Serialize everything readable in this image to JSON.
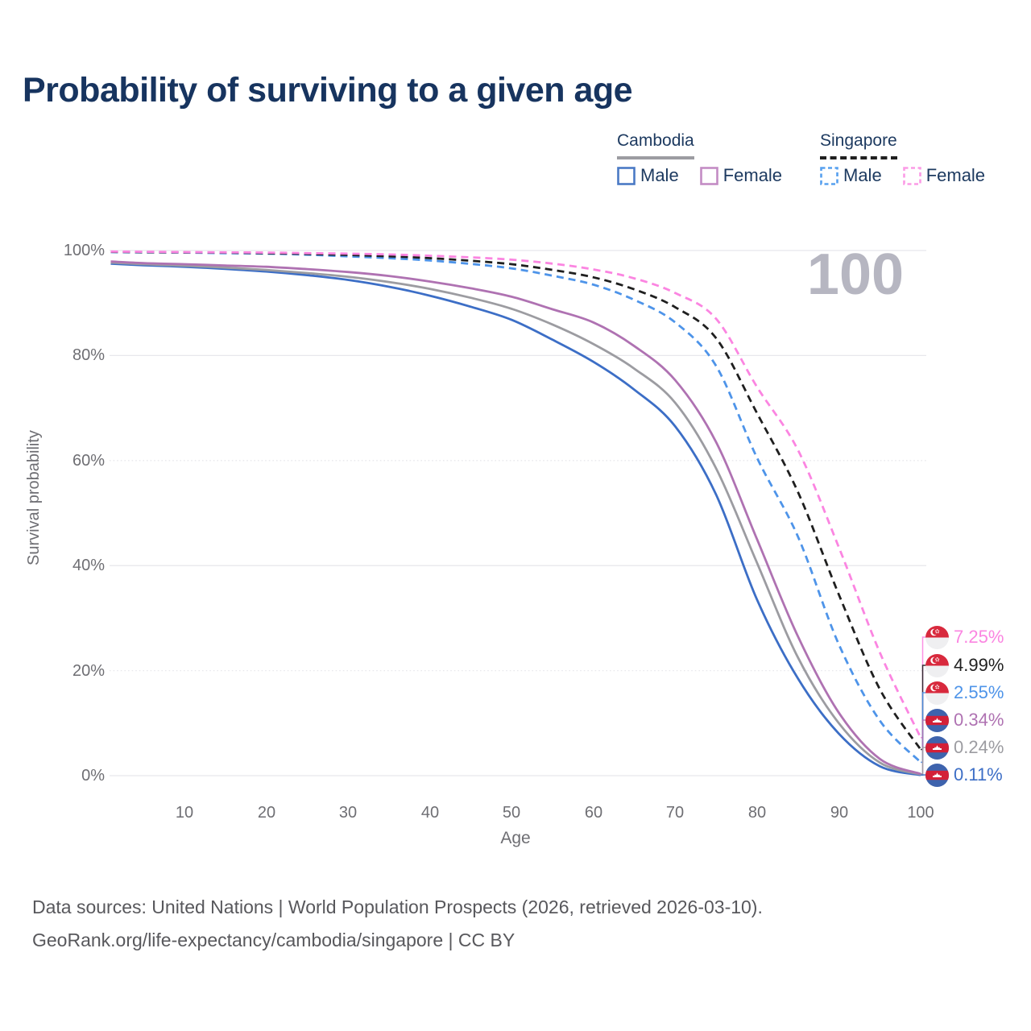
{
  "title": "Probability of surviving to a given age",
  "watermark_age": "100",
  "legend": {
    "groups": [
      {
        "country": "Cambodia",
        "line_style": "solid",
        "underline_color": "#9c9ca1",
        "items": [
          {
            "label": "Male",
            "color": "#4a79c5",
            "dashed": false
          },
          {
            "label": "Female",
            "color": "#c38cc4",
            "dashed": false
          }
        ]
      },
      {
        "country": "Singapore",
        "line_style": "dashed",
        "underline_color": "#1f1f1f",
        "items": [
          {
            "label": "Male",
            "color": "#57a0ef",
            "dashed": true
          },
          {
            "label": "Female",
            "color": "#fb9be6",
            "dashed": true
          }
        ]
      }
    ]
  },
  "chart_data": {
    "type": "line",
    "title": "Probability of surviving to a given age",
    "xlabel": "Age",
    "ylabel": "Survival probability",
    "xlim": [
      1,
      100
    ],
    "ylim": [
      0,
      100
    ],
    "grid": true,
    "x_ticks": [
      10,
      20,
      30,
      40,
      50,
      60,
      70,
      80,
      90,
      100
    ],
    "y_tick_labels": [
      "100%",
      "80%",
      "60%",
      "40%",
      "20%",
      "0%"
    ],
    "x": [
      1,
      5,
      10,
      15,
      20,
      25,
      30,
      35,
      40,
      45,
      50,
      55,
      60,
      65,
      70,
      75,
      80,
      85,
      90,
      95,
      100
    ],
    "series": [
      {
        "name": "Singapore Female",
        "country": "Singapore",
        "sex": "Female",
        "color": "#fb85e1",
        "dashed": true,
        "flag_icon": "singapore-flag-icon",
        "end_label": "7.25%",
        "values": [
          99.8,
          99.75,
          99.7,
          99.65,
          99.6,
          99.5,
          99.4,
          99.25,
          99.0,
          98.7,
          98.25,
          97.5,
          96.4,
          94.7,
          91.9,
          87.0,
          74.0,
          62.0,
          43.5,
          23.5,
          7.25
        ]
      },
      {
        "name": "Singapore Total",
        "country": "Singapore",
        "sex": "Both",
        "color": "#1f1f1f",
        "dashed": true,
        "flag_icon": "singapore-flag-icon",
        "end_label": "4.99%",
        "values": [
          99.75,
          99.7,
          99.65,
          99.6,
          99.5,
          99.35,
          99.15,
          98.9,
          98.55,
          98.05,
          97.4,
          96.3,
          94.9,
          92.6,
          89.2,
          83.3,
          69.0,
          54.0,
          34.5,
          16.5,
          4.99
        ]
      },
      {
        "name": "Singapore Male",
        "country": "Singapore",
        "sex": "Male",
        "color": "#4e94e9",
        "dashed": true,
        "flag_icon": "singapore-flag-icon",
        "end_label": "2.55%",
        "values": [
          99.7,
          99.65,
          99.6,
          99.5,
          99.4,
          99.2,
          98.9,
          98.55,
          98.1,
          97.45,
          96.6,
          95.2,
          93.5,
          90.6,
          86.3,
          78.0,
          60.5,
          45.5,
          25.0,
          10.5,
          2.55
        ]
      },
      {
        "name": "Cambodia Female",
        "country": "Cambodia",
        "sex": "Female",
        "color": "#af72b2",
        "dashed": false,
        "flag_icon": "cambodia-flag-icon",
        "end_label": "0.34%",
        "values": [
          97.9,
          97.6,
          97.4,
          97.15,
          96.9,
          96.45,
          95.9,
          95.15,
          94.1,
          92.8,
          91.2,
          88.8,
          86.3,
          81.8,
          75.3,
          63.5,
          45.0,
          26.5,
          12.0,
          3.2,
          0.34
        ]
      },
      {
        "name": "Cambodia Total",
        "country": "Cambodia",
        "sex": "Both",
        "color": "#9c9ca1",
        "dashed": false,
        "flag_icon": "cambodia-flag-icon",
        "end_label": "0.24%",
        "values": [
          97.7,
          97.4,
          97.1,
          96.75,
          96.3,
          95.7,
          95.0,
          94.0,
          92.7,
          91.0,
          88.9,
          85.9,
          82.2,
          77.5,
          71.0,
          58.5,
          40.5,
          22.5,
          10.0,
          2.5,
          0.24
        ]
      },
      {
        "name": "Cambodia Male",
        "country": "Cambodia",
        "sex": "Male",
        "color": "#3c6ec6",
        "dashed": false,
        "flag_icon": "cambodia-flag-icon",
        "end_label": "0.11%",
        "values": [
          97.5,
          97.2,
          96.9,
          96.5,
          96.0,
          95.3,
          94.4,
          93.1,
          91.4,
          89.3,
          86.8,
          83.0,
          78.8,
          73.5,
          66.5,
          53.5,
          33.5,
          18.5,
          8.0,
          1.8,
          0.11
        ]
      }
    ]
  },
  "footer": {
    "line1": "Data sources: United Nations | World Population Prospects (2026, retrieved 2026-03-10).",
    "line2": "GeoRank.org/life-expectancy/cambodia/singapore | CC BY"
  }
}
